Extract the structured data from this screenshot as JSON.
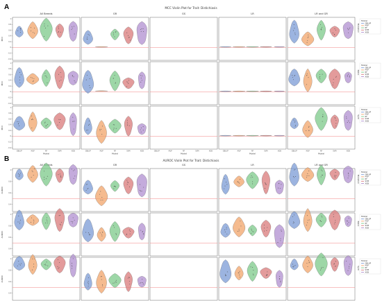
{
  "chart_data": [
    {
      "type": "violin",
      "panel_label": "A",
      "title": "MCC Violin Plot for Trait: Distichiasis",
      "ylabel": "MCC",
      "xlabel": "Model",
      "ylim": [
        -0.4,
        1.0
      ],
      "yticks": [
        -0.4,
        -0.2,
        0.0,
        0.2,
        0.4,
        0.6,
        0.8,
        1.0
      ],
      "reference_line": 0.0,
      "columns": [
        "All Breeds",
        "GR",
        "GS",
        "LR",
        "LR and GR"
      ],
      "models": [
        "GBLUP",
        "MLP",
        "RF",
        "SVM",
        "XGB"
      ],
      "row_labels": [
        "Mutation",
        "Ratio",
        "Split"
      ],
      "rows": [
        [
          [
            0.55,
            0.6,
            0.62,
            0.58,
            0.56
          ],
          [
            0.35,
            0.02,
            0.45,
            0.42,
            0.5
          ],
          null,
          [
            0.02,
            0.02,
            0.02,
            0.02,
            0.02
          ],
          [
            0.55,
            0.3,
            0.6,
            0.55,
            0.6
          ]
        ],
        [
          [
            0.5,
            0.45,
            0.48,
            0.5,
            0.48
          ],
          [
            0.35,
            0.03,
            0.38,
            0.3,
            0.4
          ],
          null,
          [
            0.02,
            0.02,
            0.02,
            0.02,
            0.02
          ],
          [
            0.5,
            0.4,
            0.55,
            0.45,
            0.5
          ]
        ],
        [
          [
            0.45,
            0.5,
            0.45,
            0.52,
            0.42
          ],
          [
            0.35,
            0.15,
            0.35,
            0.35,
            0.25
          ],
          null,
          [
            0.02,
            0.02,
            0.02,
            0.02,
            0.02
          ],
          [
            0.45,
            0.25,
            0.6,
            0.5,
            0.55
          ]
        ]
      ]
    },
    {
      "type": "violin",
      "panel_label": "B",
      "title": "AUROC Violin Plot for Trait: Distichiasis",
      "ylabel": "AUROC",
      "xlabel": "Model",
      "ylim": [
        0.3,
        1.0
      ],
      "yticks": [
        0.4,
        0.6,
        0.8,
        1.0
      ],
      "reference_line": 0.5,
      "columns": [
        "All Breeds",
        "GR",
        "GS",
        "LR",
        "LR and GR"
      ],
      "models": [
        "GBLUP",
        "MLP",
        "RF",
        "SVM",
        "XGB"
      ],
      "row_labels": [
        "Mutation",
        "Ratio",
        "Split"
      ],
      "rows": [
        [
          [
            0.92,
            0.93,
            0.92,
            0.9,
            0.92
          ],
          [
            0.7,
            0.55,
            0.72,
            0.73,
            0.73
          ],
          null,
          [
            0.75,
            0.8,
            0.82,
            0.78,
            0.7
          ],
          [
            0.92,
            0.92,
            0.91,
            0.92,
            0.92
          ]
        ],
        [
          [
            0.9,
            0.9,
            0.88,
            0.9,
            0.9
          ],
          [
            0.72,
            0.65,
            0.7,
            0.68,
            0.7
          ],
          null,
          [
            0.72,
            0.78,
            0.72,
            0.75,
            0.62
          ],
          [
            0.9,
            0.9,
            0.9,
            0.9,
            0.88
          ]
        ],
        [
          [
            0.92,
            0.9,
            0.9,
            0.9,
            0.88
          ],
          [
            0.6,
            0.6,
            0.62,
            0.6,
            0.6
          ],
          null,
          [
            0.78,
            0.75,
            0.78,
            0.75,
            0.65
          ],
          [
            0.9,
            0.9,
            0.9,
            0.9,
            0.88
          ]
        ]
      ]
    }
  ],
  "legend": {
    "title": "Model",
    "items": [
      "GBLUP",
      "MLP",
      "RF",
      "SVM",
      "XGB"
    ]
  },
  "colors": {
    "GBLUP": "#7b9bd6",
    "MLP": "#f2a46a",
    "RF": "#7cc98a",
    "SVM": "#d97a7a",
    "XGB": "#b08fd0",
    "reference_line": "#f08080"
  }
}
